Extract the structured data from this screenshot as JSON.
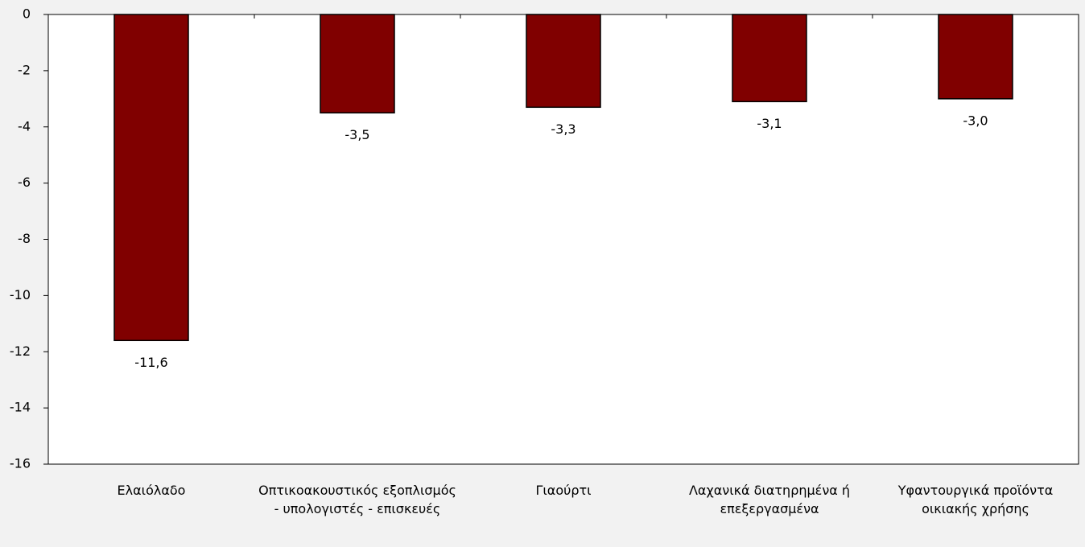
{
  "chart_data": {
    "type": "bar",
    "categories": [
      "Ελαιόλαδο",
      "Οπτικοακουστικός εξοπλισμός - υπολογιστές - επισκευές",
      "Γιαούρτι",
      "Λαχανικά διατηρημένα ή επεξεργασμένα",
      "Υφαντουργικά προϊόντα οικιακής χρήσης"
    ],
    "values": [
      -11.6,
      -3.5,
      -3.3,
      -3.1,
      -3.0
    ],
    "value_labels": [
      "-11,6",
      "-3,5",
      "-3,3",
      "-3,1",
      "-3,0"
    ],
    "color": "#800000",
    "ylim": [
      -16,
      0
    ],
    "yticks": [
      0,
      -2,
      -4,
      -6,
      -8,
      -10,
      -12,
      -14,
      -16
    ],
    "grid": false
  }
}
